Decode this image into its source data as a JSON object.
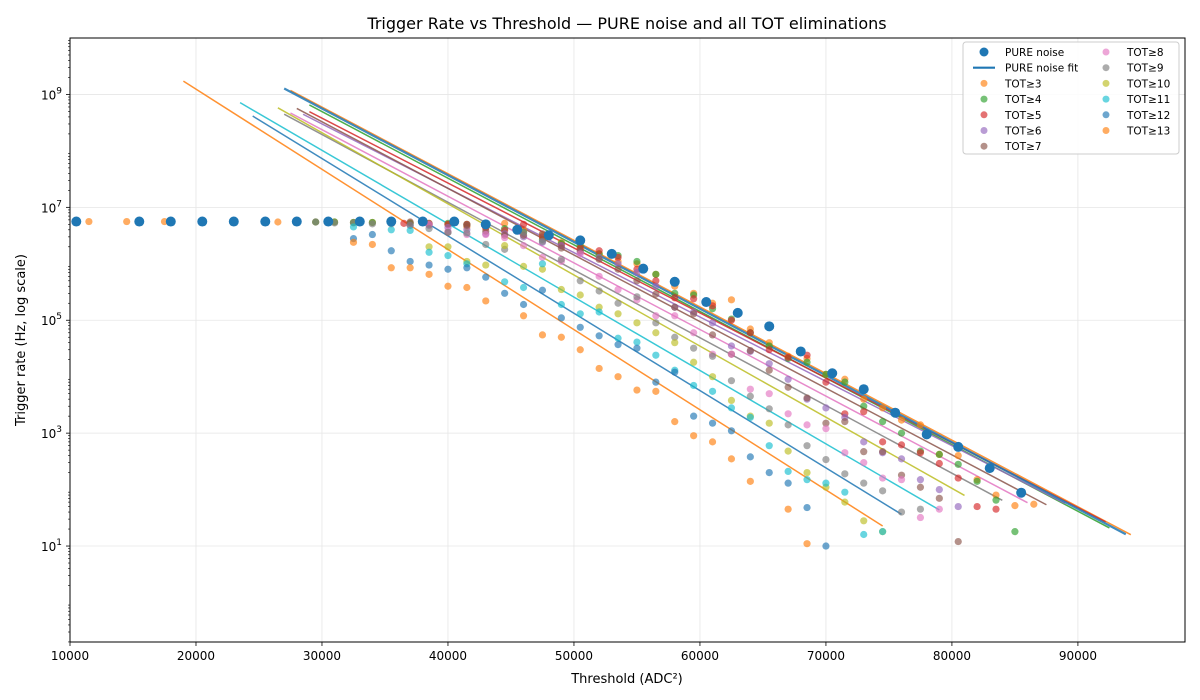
{
  "chart_data": {
    "type": "scatter",
    "title": "Trigger Rate vs Threshold — PURE noise and all TOT eliminations",
    "xlabel": "Threshold (ADC²)",
    "ylabel": "Trigger rate (Hz, log scale)",
    "xlim": [
      10000,
      98500
    ],
    "ylim_log10": [
      -0.7,
      10.0
    ],
    "y_scale": "log",
    "x_ticks": [
      10000,
      20000,
      30000,
      40000,
      50000,
      60000,
      70000,
      80000,
      90000
    ],
    "x_tick_labels": [
      "10000",
      "20000",
      "30000",
      "40000",
      "50000",
      "60000",
      "70000",
      "80000",
      "90000"
    ],
    "y_tick_exponents": [
      1,
      3,
      5,
      7,
      9
    ],
    "grid": true,
    "legend_position": "top-right",
    "legend_columns": 2,
    "plateau_rate": 5600000,
    "pure": {
      "name": "PURE noise",
      "fit_name": "PURE noise fit",
      "color": "#1f77b4",
      "x": [
        10500,
        15500,
        18000,
        20500,
        23000,
        25500,
        28000,
        30500,
        33000,
        35500,
        38000,
        40500,
        43000,
        45500,
        48000,
        50500,
        53000,
        55500,
        58000,
        60500,
        63000,
        65500,
        68000,
        70500,
        73000,
        75500,
        78000,
        80500,
        83000,
        85500
      ],
      "y": [
        5600000,
        5600000,
        5600000,
        5600000,
        5600000,
        5600000,
        5600000,
        5600000,
        5600000,
        5600000,
        5600000,
        5600000,
        5000000,
        4000000,
        3200000,
        2600000,
        1500000,
        820000,
        480000,
        210000,
        135000,
        78000,
        28000,
        11500,
        6000,
        2300,
        950,
        570,
        240,
        88
      ],
      "fit": {
        "x0": 52000,
        "log10_y0": 6.15,
        "slope_per_10k": -1.182,
        "x_start": 27000,
        "x_end": 93800
      }
    },
    "series": [
      {
        "name": "TOT≥3",
        "color": "#ff7f0e",
        "fit": {
          "x0": 52000,
          "log10_y0": 6.18,
          "slope_per_10k": -1.18,
          "x_start": 27500,
          "x_end": 94200
        },
        "x": [
          11500,
          14500,
          17500,
          26500,
          29500,
          31000,
          32500,
          34000,
          35500,
          37000,
          38500,
          40000,
          41500,
          43000,
          44500,
          46000,
          47500,
          49000,
          50500,
          52000,
          53500,
          55000,
          56500,
          58000,
          59500,
          61000,
          62500,
          64000,
          65500,
          67000,
          68500,
          70000,
          71500,
          73000,
          74500,
          76000,
          77500,
          79000,
          80500,
          82000,
          83500,
          85000,
          86500
        ],
        "y": [
          5600000,
          5600000,
          5600000,
          5500000,
          5500000,
          5500000,
          5400000,
          5400000,
          5400000,
          5300000,
          5200000,
          5000000,
          4500000,
          4500000,
          5200000,
          4000000,
          3200000,
          2400000,
          1900000,
          1500000,
          1100000,
          1000000,
          650000,
          400000,
          300000,
          200000,
          230000,
          70000,
          40000,
          23000,
          21000,
          11000,
          9000,
          4000,
          2800,
          1700,
          1400,
          420,
          400,
          150,
          80,
          52,
          55
        ]
      },
      {
        "name": "TOT≥4",
        "color": "#2ca02c",
        "fit": {
          "x0": 52000,
          "log10_y0": 6.1,
          "slope_per_10k": -1.18,
          "x_start": 29000,
          "x_end": 92500
        },
        "x": [
          29500,
          31000,
          32500,
          34000,
          35500,
          37000,
          38500,
          40000,
          41500,
          43000,
          44500,
          46000,
          47500,
          49000,
          50500,
          52000,
          53500,
          55000,
          56500,
          58000,
          59500,
          61000,
          62500,
          64000,
          65500,
          67000,
          68500,
          70000,
          71500,
          73000,
          74500,
          76000,
          77500,
          79000,
          80500,
          82000,
          83500,
          85000
        ],
        "y": [
          5500000,
          5500000,
          5400000,
          5400000,
          5300000,
          5200000,
          5000000,
          5200000,
          5000000,
          5100000,
          4200000,
          3600000,
          2700000,
          2300000,
          2100000,
          1500000,
          1400000,
          1100000,
          650000,
          300000,
          280000,
          160000,
          105000,
          60000,
          35000,
          21000,
          18000,
          11000,
          8000,
          3000,
          1600,
          1000,
          480,
          420,
          280,
          140,
          65,
          18
        ]
      },
      {
        "name": "TOT≥5",
        "color": "#d62728",
        "fit": {
          "x0": 52000,
          "log10_y0": 6.05,
          "slope_per_10k": -1.15,
          "x_start": 29000,
          "x_end": 92200
        },
        "x": [
          36500,
          38500,
          40000,
          41500,
          43000,
          44500,
          46000,
          47500,
          49000,
          50500,
          52000,
          53500,
          55000,
          56500,
          58000,
          59500,
          61000,
          62500,
          64000,
          65500,
          67000,
          68500,
          70000,
          71500,
          73000,
          74500,
          76000,
          77500,
          79000,
          80500,
          82000,
          83500
        ],
        "y": [
          5200000,
          5000000,
          5000000,
          5000000,
          4300000,
          3900000,
          5000000,
          3000000,
          2100000,
          1900000,
          1700000,
          1300000,
          800000,
          500000,
          250000,
          240000,
          180000,
          100000,
          60000,
          30000,
          22000,
          24000,
          8000,
          2200,
          2400,
          700,
          620,
          450,
          290,
          160,
          50,
          45
        ]
      },
      {
        "name": "TOT≥6",
        "color": "#9467bd",
        "fit": {
          "x0": 52000,
          "log10_y0": 5.97,
          "slope_per_10k": -1.14,
          "x_start": 28500,
          "x_end": 89000
        },
        "x": [
          35500,
          37000,
          38500,
          40000,
          41500,
          43000,
          44500,
          46000,
          47500,
          49000,
          50500,
          52000,
          53500,
          55000,
          56500,
          58000,
          59500,
          61000,
          62500,
          64000,
          65500,
          67000,
          68500,
          70000,
          71500,
          73000,
          74500,
          76000,
          77500,
          79000,
          80500
        ],
        "y": [
          5200000,
          4800000,
          4800000,
          4400000,
          4000000,
          3400000,
          3400000,
          3000000,
          2400000,
          2100000,
          1600000,
          1300000,
          1000000,
          700000,
          400000,
          170000,
          140000,
          90000,
          35000,
          28000,
          17000,
          9000,
          4000,
          2800,
          1900,
          700,
          450,
          350,
          150,
          100,
          50
        ]
      },
      {
        "name": "TOT≥7",
        "color": "#8c564b",
        "fit": {
          "x0": 52000,
          "log10_y0": 5.92,
          "slope_per_10k": -1.18,
          "x_start": 28000,
          "x_end": 87500
        },
        "x": [
          35500,
          37000,
          38500,
          40000,
          41500,
          43000,
          44500,
          46000,
          47500,
          49000,
          50500,
          52000,
          53500,
          55000,
          56500,
          58000,
          59500,
          61000,
          62500,
          64000,
          65500,
          67000,
          68500,
          70000,
          71500,
          73000,
          74500,
          76000,
          77500,
          79000,
          80500
        ],
        "y": [
          5600000,
          5500000,
          5200000,
          3600000,
          4800000,
          3800000,
          3200000,
          3200000,
          3400000,
          1900000,
          1700000,
          1200000,
          800000,
          500000,
          290000,
          170000,
          130000,
          55000,
          25000,
          29000,
          13000,
          6500,
          4200,
          1500,
          1600,
          470,
          470,
          180,
          110,
          70,
          12
        ]
      },
      {
        "name": "TOT≥8",
        "color": "#e377c2",
        "fit": {
          "x0": 52000,
          "log10_y0": 5.78,
          "slope_per_10k": -1.18,
          "x_start": 27500,
          "x_end": 86000
        },
        "x": [
          38500,
          40000,
          41500,
          43000,
          44500,
          46000,
          47500,
          49000,
          50500,
          52000,
          53500,
          55000,
          56500,
          58000,
          59500,
          61000,
          62500,
          64000,
          65500,
          67000,
          68500,
          70000,
          71500,
          73000,
          74500,
          76000,
          77500,
          79000
        ],
        "y": [
          5000000,
          3800000,
          3300000,
          3300000,
          2900000,
          2100000,
          1300000,
          1100000,
          1500000,
          600000,
          350000,
          230000,
          120000,
          120000,
          60000,
          25000,
          25000,
          6000,
          5000,
          2200,
          1400,
          1200,
          450,
          300,
          160,
          150,
          32,
          45
        ]
      },
      {
        "name": "TOT≥9",
        "color": "#7f7f7f",
        "fit": {
          "x0": 52000,
          "log10_y0": 5.65,
          "slope_per_10k": -1.2,
          "x_start": 27000,
          "x_end": 84000
        },
        "x": [
          29500,
          31000,
          32500,
          34000,
          35500,
          37000,
          38500,
          40000,
          41500,
          43000,
          44500,
          46000,
          47500,
          49000,
          50500,
          52000,
          53500,
          55000,
          56500,
          58000,
          59500,
          61000,
          62500,
          64000,
          65500,
          67000,
          68500,
          70000,
          71500,
          73000,
          74500,
          76000,
          77500
        ],
        "y": [
          5500000,
          5300000,
          5300000,
          5100000,
          5100000,
          4800000,
          4200000,
          3600000,
          3500000,
          2200000,
          1800000,
          3600000,
          2500000,
          1200000,
          500000,
          330000,
          200000,
          260000,
          90000,
          50000,
          32000,
          23000,
          8500,
          4500,
          2700,
          1400,
          600,
          340,
          190,
          130,
          95,
          40,
          45
        ]
      },
      {
        "name": "TOT≥10",
        "color": "#bcbd22",
        "fit": {
          "x0": 52000,
          "log10_y0": 5.55,
          "slope_per_10k": -1.26,
          "x_start": 26500,
          "x_end": 81000
        },
        "x": [
          38500,
          40000,
          41500,
          43000,
          44500,
          46000,
          47500,
          49000,
          50500,
          52000,
          53500,
          55000,
          56500,
          58000,
          59500,
          61000,
          62500,
          64000,
          65500,
          67000,
          68500,
          70000,
          71500,
          73000,
          74500
        ],
        "y": [
          2000000,
          2000000,
          1100000,
          950000,
          2100000,
          900000,
          800000,
          350000,
          280000,
          170000,
          130000,
          90000,
          60000,
          40000,
          18000,
          10000,
          3800,
          2000,
          1500,
          480,
          200,
          110,
          60,
          28,
          18
        ]
      },
      {
        "name": "TOT≥11",
        "color": "#17becf",
        "fit": {
          "x0": 52000,
          "log10_y0": 5.15,
          "slope_per_10k": -1.3,
          "x_start": 23500,
          "x_end": 79000
        },
        "x": [
          32500,
          35500,
          37000,
          38500,
          40000,
          41500,
          43000,
          44500,
          46000,
          47500,
          49000,
          50500,
          52000,
          53500,
          55000,
          56500,
          58000,
          59500,
          61000,
          62500,
          64000,
          65500,
          67000,
          68500,
          70000,
          71500,
          73000,
          74500
        ],
        "y": [
          4500000,
          4000000,
          3900000,
          1600000,
          1400000,
          1000000,
          5000000,
          480000,
          380000,
          1000000,
          190000,
          130000,
          140000,
          48000,
          41000,
          24000,
          13000,
          7000,
          5500,
          2800,
          1900,
          600,
          210,
          150,
          130,
          90,
          16,
          18
        ]
      },
      {
        "name": "TOT≥12",
        "color": "#1f77b4",
        "fit": {
          "x0": 52000,
          "log10_y0": 4.85,
          "slope_per_10k": -1.37,
          "x_start": 24500,
          "x_end": 76000
        },
        "x": [
          32500,
          34000,
          35500,
          37000,
          38500,
          40000,
          41500,
          43000,
          44500,
          46000,
          47500,
          49000,
          50500,
          52000,
          53500,
          55000,
          56500,
          58000,
          59500,
          61000,
          62500,
          64000,
          65500,
          67000,
          68500,
          70000
        ],
        "y": [
          2800000,
          3300000,
          1700000,
          1100000,
          950000,
          800000,
          850000,
          580000,
          300000,
          190000,
          340000,
          110000,
          75000,
          53000,
          37000,
          32000,
          8000,
          12000,
          2000,
          1500,
          1100,
          380,
          200,
          130,
          48,
          10
        ]
      },
      {
        "name": "TOT≥13",
        "color": "#ff7f0e",
        "fit": {
          "x0": 52000,
          "log10_y0": 4.55,
          "slope_per_10k": -1.42,
          "x_start": 19000,
          "x_end": 74500
        },
        "x": [
          32500,
          34000,
          35500,
          37000,
          38500,
          40000,
          41500,
          43000,
          46000,
          47500,
          49000,
          50500,
          52000,
          53500,
          55000,
          56500,
          58000,
          59500,
          61000,
          62500,
          64000,
          67000,
          68500
        ],
        "y": [
          2400000,
          2200000,
          850000,
          850000,
          650000,
          400000,
          380000,
          220000,
          120000,
          55000,
          50000,
          30000,
          14000,
          10000,
          5800,
          5500,
          1600,
          900,
          700,
          350,
          140,
          45,
          11
        ]
      }
    ]
  }
}
